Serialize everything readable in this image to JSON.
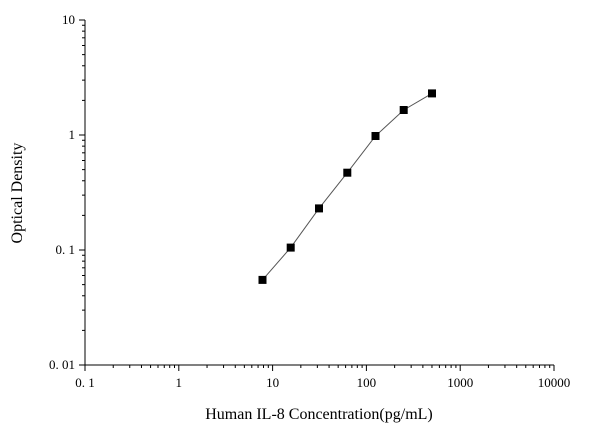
{
  "chart_data": {
    "type": "scatter",
    "title": "",
    "xlabel": "Human IL-8 Concentration(pg/mL)",
    "ylabel": "Optical Density",
    "xscale": "log",
    "yscale": "log",
    "xlim": [
      0.1,
      10000
    ],
    "ylim": [
      0.01,
      10
    ],
    "x_tick_labels": [
      "0. 1",
      "1",
      "10",
      "100",
      "1000",
      "10000"
    ],
    "y_tick_labels": [
      "0. 01",
      "0. 1",
      "1",
      "10"
    ],
    "grid": false,
    "legend": "none",
    "series": [
      {
        "x": [
          7.8,
          15.6,
          31.25,
          62.5,
          125,
          250,
          500
        ],
        "y": [
          0.055,
          0.105,
          0.23,
          0.47,
          0.98,
          1.65,
          2.3
        ],
        "marker": "square",
        "line": true
      }
    ],
    "colors": {
      "marker": "#000000",
      "line": "#555555",
      "axis": "#000000"
    }
  }
}
